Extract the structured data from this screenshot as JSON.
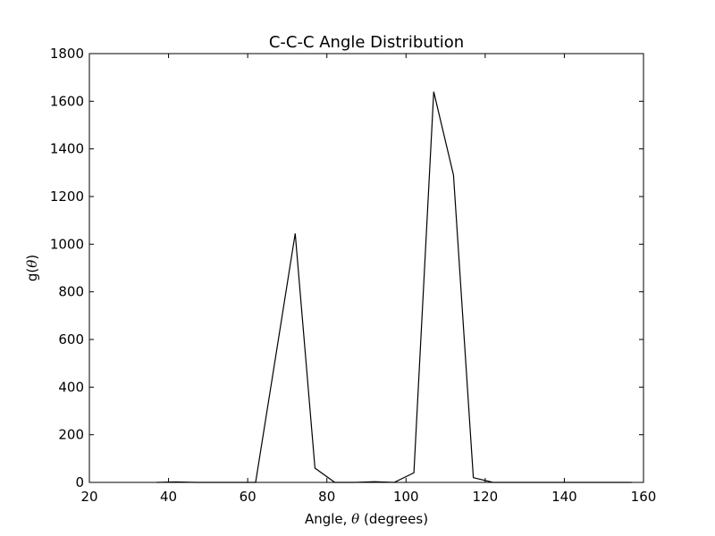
{
  "chart_data": {
    "type": "line",
    "title": "C-C-C Angle Distribution",
    "xlabel": {
      "prefix": "Angle, ",
      "symbol": "θ",
      "suffix": " (degrees)"
    },
    "ylabel": {
      "prefix": "g(",
      "symbol": "θ",
      "suffix": ")"
    },
    "xlim": [
      20,
      160
    ],
    "ylim": [
      0,
      1800
    ],
    "xticks": [
      20,
      40,
      60,
      80,
      100,
      120,
      140,
      160
    ],
    "yticks": [
      0,
      200,
      400,
      600,
      800,
      1000,
      1200,
      1400,
      1600,
      1800
    ],
    "grid": false,
    "line_color": "#000000",
    "series": [
      {
        "x": [
          37,
          42,
          47,
          52,
          57,
          62,
          67,
          72,
          77,
          82,
          87,
          92,
          97,
          102,
          107,
          112,
          117,
          122,
          127,
          132,
          137,
          142,
          147,
          152,
          157
        ],
        "y": [
          0,
          2,
          0,
          0,
          0,
          0,
          520,
          1045,
          60,
          0,
          0,
          3,
          0,
          40,
          1640,
          1290,
          20,
          0,
          0,
          0,
          0,
          0,
          0,
          0,
          0
        ]
      }
    ]
  }
}
